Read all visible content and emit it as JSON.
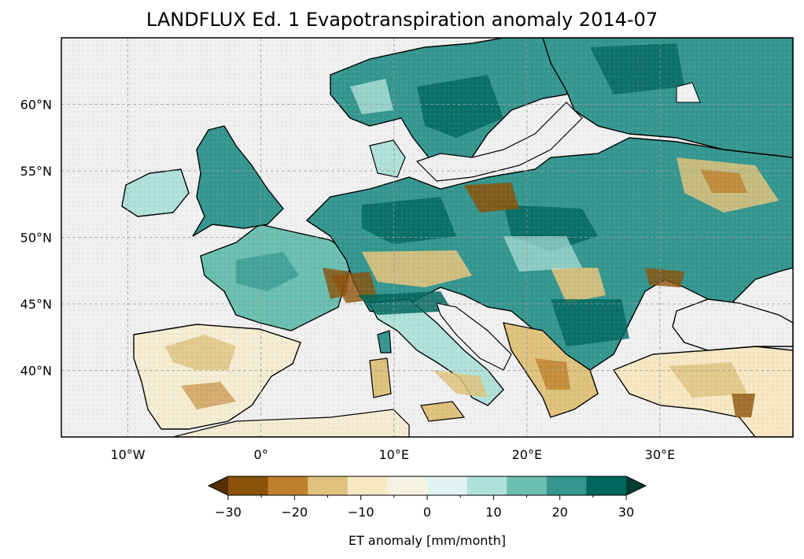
{
  "title": "LANDFLUX Ed. 1 Evapotranspiration anomaly 2014-07",
  "map": {
    "lon_range": [
      -15,
      40
    ],
    "lat_range": [
      35,
      65
    ],
    "lon_ticks": [
      {
        "value": -10,
        "label": "10°W"
      },
      {
        "value": 0,
        "label": "0°"
      },
      {
        "value": 10,
        "label": "10°E"
      },
      {
        "value": 20,
        "label": "20°E"
      },
      {
        "value": 30,
        "label": "30°E"
      }
    ],
    "lat_ticks": [
      {
        "value": 40,
        "label": "40°N"
      },
      {
        "value": 45,
        "label": "45°N"
      },
      {
        "value": 50,
        "label": "50°N"
      },
      {
        "value": 55,
        "label": "55°N"
      },
      {
        "value": 60,
        "label": "60°N"
      }
    ],
    "ocean_color": "#f0f0f0",
    "gridlines": "dashed"
  },
  "colorbar": {
    "label": "ET anomaly [mm/month]",
    "ticks": [
      "−30",
      "−20",
      "−10",
      "0",
      "10",
      "20",
      "30"
    ],
    "colors": [
      "#543005",
      "#8c510a",
      "#bf812d",
      "#dfc27d",
      "#f6e8c3",
      "#f5f1e3",
      "#e0f3f1",
      "#b0e1d9",
      "#6bbfb0",
      "#35978f",
      "#01665e",
      "#003c30"
    ],
    "extend": "both"
  }
}
